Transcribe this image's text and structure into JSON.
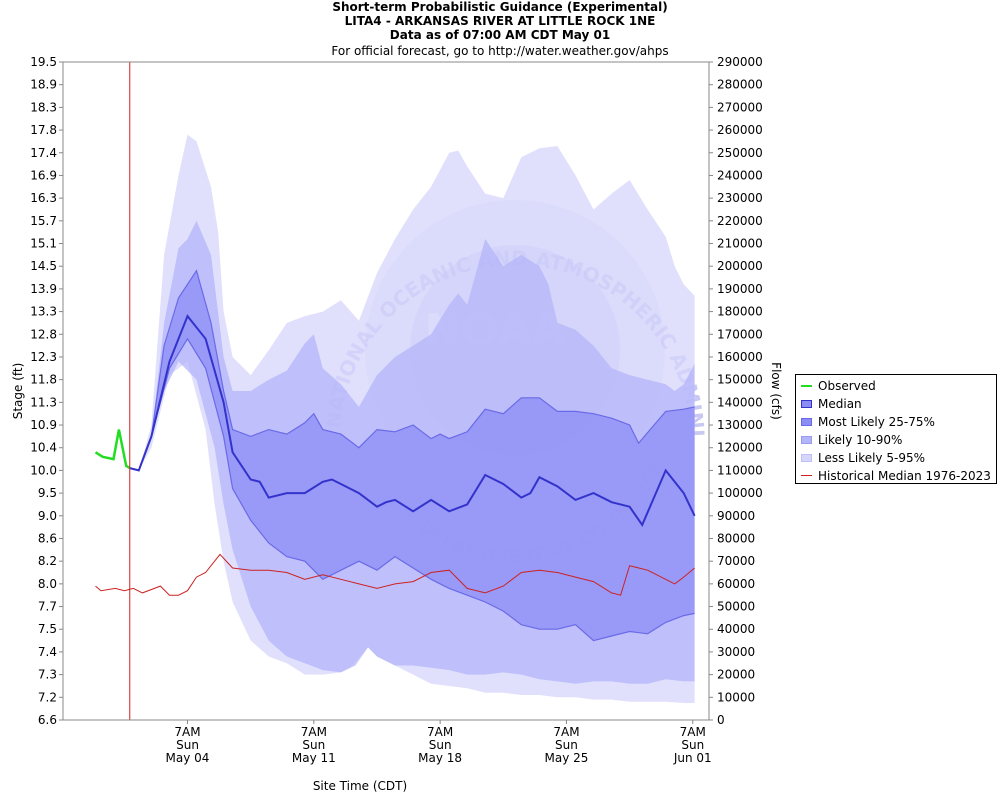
{
  "header": {
    "title": "Short-term Probabilistic Guidance (Experimental)",
    "station": "LITA4 - ARKANSAS RIVER AT LITTLE ROCK 1NE",
    "data_as_of": "Data as of 07:00 AM CDT May 01",
    "official_note": "For official forecast, go to http://water.weather.gov/ahps"
  },
  "legend": {
    "observed": "Observed",
    "median": "Median",
    "most_likely": "Most Likely 25-75%",
    "likely": "Likely 10-90%",
    "less_likely": "Less Likely 5-95%",
    "historical": "Historical Median 1976-2023"
  },
  "colors": {
    "observed": "#22dd22",
    "median": "#3333cc",
    "band_25_75": "#8c8cf5",
    "band_10_90": "#b4b4fa",
    "band_5_95": "#d6d6fc",
    "historical": "#cc2222",
    "now_line": "#cc2222"
  },
  "watermark": {
    "text": "NATIONAL OCEANIC AND ATMOSPHERIC ADMINISTRATION",
    "bottom_text": "U.S. DEPARTMENT OF COMMERCE",
    "logo_text": "NOAA"
  },
  "chart_data": {
    "type": "area",
    "xlabel": "Site Time (CDT)",
    "ylabel": "Stage (ft)",
    "y2label": "Flow (cfs)",
    "y_ticks": [
      "19.5",
      "18.9",
      "18.3",
      "17.8",
      "17.4",
      "16.9",
      "16.3",
      "15.7",
      "15.1",
      "14.5",
      "13.9",
      "13.3",
      "12.8",
      "12.3",
      "11.8",
      "11.3",
      "10.9",
      "10.4",
      "10.0",
      "9.5",
      "9.0",
      "8.6",
      "8.2",
      "8.0",
      "7.7",
      "7.5",
      "7.4",
      "7.3",
      "7.2",
      "6.6"
    ],
    "y2_ticks": [
      "290000",
      "280000",
      "270000",
      "260000",
      "250000",
      "240000",
      "230000",
      "220000",
      "210000",
      "200000",
      "190000",
      "180000",
      "170000",
      "160000",
      "150000",
      "140000",
      "130000",
      "120000",
      "110000",
      "100000",
      "90000",
      "80000",
      "70000",
      "60000",
      "50000",
      "40000",
      "30000",
      "20000",
      "10000",
      "0"
    ],
    "flow_range": [
      0,
      290000
    ],
    "x_ticks": [
      {
        "day": 3.5,
        "time": "7AM",
        "dow": "Sun",
        "date": "May 04"
      },
      {
        "day": 10.5,
        "time": "7AM",
        "dow": "Sun",
        "date": "May 11"
      },
      {
        "day": 17.5,
        "time": "7AM",
        "dow": "Sun",
        "date": "May 18"
      },
      {
        "day": 24.5,
        "time": "7AM",
        "dow": "Sun",
        "date": "May 25"
      },
      {
        "day": 31.5,
        "time": "7AM",
        "dow": "Sun",
        "date": "Jun 01"
      }
    ],
    "x_range_days": [
      -3.4,
      32.4
    ],
    "forecast_start_day": 0.3,
    "observed": [
      [
        -1.6,
        118000
      ],
      [
        -1.2,
        116000
      ],
      [
        -0.6,
        115000
      ],
      [
        -0.3,
        128000
      ],
      [
        0.1,
        112000
      ],
      [
        0.3,
        111000
      ]
    ],
    "median": [
      [
        0.3,
        111000
      ],
      [
        0.8,
        110000
      ],
      [
        1.5,
        125000
      ],
      [
        2.5,
        158000
      ],
      [
        3.5,
        178000
      ],
      [
        4.5,
        168000
      ],
      [
        5.5,
        140000
      ],
      [
        6,
        118000
      ],
      [
        7,
        106000
      ],
      [
        7.5,
        105000
      ],
      [
        8,
        98000
      ],
      [
        9,
        100000
      ],
      [
        10,
        100000
      ],
      [
        11,
        105000
      ],
      [
        11.5,
        106000
      ],
      [
        12,
        104000
      ],
      [
        13,
        100000
      ],
      [
        14,
        94000
      ],
      [
        14.5,
        96000
      ],
      [
        15,
        97000
      ],
      [
        16,
        92000
      ],
      [
        17,
        97000
      ],
      [
        18,
        92000
      ],
      [
        19,
        95000
      ],
      [
        20,
        108000
      ],
      [
        21,
        104000
      ],
      [
        22,
        98000
      ],
      [
        22.5,
        100000
      ],
      [
        23,
        107000
      ],
      [
        24,
        103000
      ],
      [
        25,
        97000
      ],
      [
        26,
        100000
      ],
      [
        27,
        96000
      ],
      [
        28,
        94000
      ],
      [
        28.7,
        86000
      ],
      [
        30,
        110000
      ],
      [
        31,
        100000
      ],
      [
        31.6,
        90000
      ]
    ],
    "band_25_75": {
      "upper": [
        [
          0.3,
          111000
        ],
        [
          0.8,
          110000
        ],
        [
          1.5,
          125000
        ],
        [
          2.2,
          165000
        ],
        [
          3,
          186000
        ],
        [
          4,
          198000
        ],
        [
          4.8,
          175000
        ],
        [
          5.5,
          145000
        ],
        [
          6,
          128000
        ],
        [
          7,
          125000
        ],
        [
          8,
          128000
        ],
        [
          9,
          126000
        ],
        [
          10,
          131000
        ],
        [
          10.5,
          135000
        ],
        [
          11,
          128000
        ],
        [
          12,
          126000
        ],
        [
          13,
          120000
        ],
        [
          14,
          128000
        ],
        [
          15,
          127000
        ],
        [
          16,
          130000
        ],
        [
          17,
          124000
        ],
        [
          17.5,
          126000
        ],
        [
          18,
          124000
        ],
        [
          19,
          127000
        ],
        [
          20,
          137000
        ],
        [
          21,
          135000
        ],
        [
          22,
          142000
        ],
        [
          23,
          142000
        ],
        [
          24,
          136000
        ],
        [
          25,
          136000
        ],
        [
          26,
          135000
        ],
        [
          27,
          133000
        ],
        [
          28,
          130000
        ],
        [
          28.5,
          122000
        ],
        [
          30,
          136000
        ],
        [
          31,
          137000
        ],
        [
          31.6,
          138000
        ]
      ],
      "lower": [
        [
          0.3,
          111000
        ],
        [
          0.8,
          110000
        ],
        [
          1.5,
          125000
        ],
        [
          2.5,
          155000
        ],
        [
          3.5,
          168000
        ],
        [
          4.5,
          155000
        ],
        [
          5.5,
          125000
        ],
        [
          6,
          102000
        ],
        [
          7,
          88000
        ],
        [
          8,
          78000
        ],
        [
          9,
          72000
        ],
        [
          10,
          70000
        ],
        [
          11,
          62000
        ],
        [
          12,
          66000
        ],
        [
          13,
          70000
        ],
        [
          14,
          66000
        ],
        [
          15,
          72000
        ],
        [
          16,
          67000
        ],
        [
          17,
          62000
        ],
        [
          18,
          58000
        ],
        [
          19,
          55000
        ],
        [
          20,
          52000
        ],
        [
          21,
          48000
        ],
        [
          22,
          42000
        ],
        [
          23,
          40000
        ],
        [
          24,
          40000
        ],
        [
          25,
          42000
        ],
        [
          26,
          35000
        ],
        [
          27,
          37000
        ],
        [
          28,
          39000
        ],
        [
          29,
          38000
        ],
        [
          30,
          43000
        ],
        [
          31,
          46000
        ],
        [
          31.6,
          47000
        ]
      ]
    },
    "band_10_90": {
      "upper": [
        [
          0.3,
          111000
        ],
        [
          0.8,
          110000
        ],
        [
          1.5,
          125000
        ],
        [
          2.2,
          175000
        ],
        [
          3,
          208000
        ],
        [
          3.5,
          212000
        ],
        [
          4,
          220000
        ],
        [
          4.8,
          205000
        ],
        [
          5.5,
          160000
        ],
        [
          6,
          145000
        ],
        [
          7,
          145000
        ],
        [
          8,
          150000
        ],
        [
          9,
          154000
        ],
        [
          10,
          166000
        ],
        [
          10.5,
          170000
        ],
        [
          11,
          155000
        ],
        [
          12,
          148000
        ],
        [
          13,
          138000
        ],
        [
          14,
          152000
        ],
        [
          15,
          160000
        ],
        [
          16,
          165000
        ],
        [
          17,
          170000
        ],
        [
          18,
          183000
        ],
        [
          18.5,
          188000
        ],
        [
          19,
          183000
        ],
        [
          20,
          212000
        ],
        [
          21,
          200000
        ],
        [
          22,
          205000
        ],
        [
          23,
          200000
        ],
        [
          23.5,
          192000
        ],
        [
          24,
          175000
        ],
        [
          25,
          172000
        ],
        [
          26,
          165000
        ],
        [
          27,
          155000
        ],
        [
          28,
          152000
        ],
        [
          29,
          150000
        ],
        [
          30,
          148000
        ],
        [
          30.5,
          145000
        ],
        [
          31,
          148000
        ],
        [
          31.6,
          157000
        ]
      ],
      "lower": [
        [
          0.3,
          111000
        ],
        [
          0.8,
          110000
        ],
        [
          1.5,
          125000
        ],
        [
          2.2,
          145000
        ],
        [
          3,
          158000
        ],
        [
          4,
          150000
        ],
        [
          5,
          120000
        ],
        [
          5.5,
          95000
        ],
        [
          6,
          75000
        ],
        [
          7,
          50000
        ],
        [
          8,
          35000
        ],
        [
          9,
          28000
        ],
        [
          10,
          25000
        ],
        [
          11,
          22000
        ],
        [
          12,
          21000
        ],
        [
          12.8,
          24000
        ],
        [
          13.5,
          32000
        ],
        [
          14,
          28000
        ],
        [
          15,
          24000
        ],
        [
          16,
          24000
        ],
        [
          17,
          23000
        ],
        [
          18,
          22000
        ],
        [
          19,
          20000
        ],
        [
          20,
          20000
        ],
        [
          21,
          21000
        ],
        [
          22,
          20000
        ],
        [
          23,
          18000
        ],
        [
          24,
          17000
        ],
        [
          25,
          16000
        ],
        [
          26,
          17000
        ],
        [
          27,
          17000
        ],
        [
          28,
          16000
        ],
        [
          29,
          16000
        ],
        [
          30,
          18000
        ],
        [
          31,
          17000
        ],
        [
          31.6,
          17000
        ]
      ]
    },
    "band_5_95": {
      "upper": [
        [
          0.3,
          111000
        ],
        [
          0.8,
          110000
        ],
        [
          1.5,
          130000
        ],
        [
          2.2,
          205000
        ],
        [
          3,
          240000
        ],
        [
          3.5,
          258000
        ],
        [
          4,
          255000
        ],
        [
          4.8,
          235000
        ],
        [
          5.2,
          215000
        ],
        [
          5.5,
          180000
        ],
        [
          6,
          160000
        ],
        [
          7,
          152000
        ],
        [
          8,
          163000
        ],
        [
          9,
          175000
        ],
        [
          10,
          178000
        ],
        [
          11,
          180000
        ],
        [
          12,
          185000
        ],
        [
          13,
          176000
        ],
        [
          14,
          197000
        ],
        [
          15,
          212000
        ],
        [
          16,
          225000
        ],
        [
          17,
          235000
        ],
        [
          18,
          250000
        ],
        [
          18.5,
          251000
        ],
        [
          19,
          244000
        ],
        [
          20,
          232000
        ],
        [
          21,
          230000
        ],
        [
          22,
          248000
        ],
        [
          23,
          252000
        ],
        [
          24,
          253000
        ],
        [
          25,
          240000
        ],
        [
          26,
          225000
        ],
        [
          27,
          232000
        ],
        [
          28,
          238000
        ],
        [
          29,
          225000
        ],
        [
          30,
          213000
        ],
        [
          30.5,
          200000
        ],
        [
          31,
          192000
        ],
        [
          31.6,
          187000
        ]
      ],
      "lower": [
        [
          0.3,
          111000
        ],
        [
          0.8,
          110000
        ],
        [
          1.5,
          120000
        ],
        [
          2.5,
          152000
        ],
        [
          3.5,
          158000
        ],
        [
          4.5,
          128000
        ],
        [
          5,
          95000
        ],
        [
          5.5,
          70000
        ],
        [
          6,
          52000
        ],
        [
          7,
          35000
        ],
        [
          8,
          28000
        ],
        [
          9,
          25000
        ],
        [
          10,
          20000
        ],
        [
          11,
          20000
        ],
        [
          12,
          21000
        ],
        [
          12.5,
          23000
        ],
        [
          13.5,
          32000
        ],
        [
          14,
          28000
        ],
        [
          15,
          24000
        ],
        [
          16,
          20000
        ],
        [
          17,
          16000
        ],
        [
          18,
          15000
        ],
        [
          19,
          14000
        ],
        [
          20,
          12000
        ],
        [
          21,
          12000
        ],
        [
          22,
          11000
        ],
        [
          23,
          11000
        ],
        [
          24,
          10000
        ],
        [
          25,
          10000
        ],
        [
          26,
          9000
        ],
        [
          27,
          9000
        ],
        [
          28,
          8000
        ],
        [
          29,
          8000
        ],
        [
          30,
          8000
        ],
        [
          31,
          7500
        ],
        [
          31.6,
          7500
        ]
      ]
    },
    "historical": [
      [
        -1.6,
        59000
      ],
      [
        -1.3,
        57000
      ],
      [
        -0.5,
        58000
      ],
      [
        0,
        57000
      ],
      [
        0.5,
        58000
      ],
      [
        1,
        56000
      ],
      [
        2,
        59000
      ],
      [
        2.5,
        55000
      ],
      [
        3,
        55000
      ],
      [
        3.5,
        57000
      ],
      [
        4,
        63000
      ],
      [
        4.5,
        65000
      ],
      [
        5,
        70000
      ],
      [
        5.3,
        73000
      ],
      [
        6,
        67000
      ],
      [
        7,
        66000
      ],
      [
        8,
        66000
      ],
      [
        9,
        65000
      ],
      [
        10,
        62000
      ],
      [
        11,
        64000
      ],
      [
        12,
        62000
      ],
      [
        13,
        60000
      ],
      [
        14,
        58000
      ],
      [
        15,
        60000
      ],
      [
        16,
        61000
      ],
      [
        17,
        65000
      ],
      [
        18,
        66000
      ],
      [
        19,
        58000
      ],
      [
        20,
        56000
      ],
      [
        21,
        59000
      ],
      [
        22,
        65000
      ],
      [
        23,
        66000
      ],
      [
        24,
        65000
      ],
      [
        25,
        63000
      ],
      [
        26,
        61000
      ],
      [
        27,
        56000
      ],
      [
        27.5,
        55000
      ],
      [
        28,
        68000
      ],
      [
        29,
        66000
      ],
      [
        30,
        62000
      ],
      [
        30.5,
        60000
      ],
      [
        31,
        63000
      ],
      [
        31.6,
        67000
      ]
    ]
  }
}
